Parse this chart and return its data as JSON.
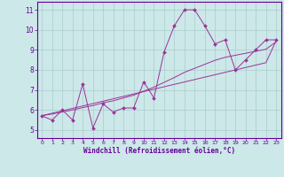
{
  "title": "",
  "xlabel": "Windchill (Refroidissement éolien,°C)",
  "bg_color": "#cce8e8",
  "line_color": "#993399",
  "grid_color": "#aacccc",
  "axis_color": "#660099",
  "spine_color": "#660099",
  "x_data": [
    0,
    1,
    2,
    3,
    4,
    5,
    6,
    7,
    8,
    9,
    10,
    11,
    12,
    13,
    14,
    15,
    16,
    17,
    18,
    19,
    20,
    21,
    22,
    23
  ],
  "y_scatter": [
    5.7,
    5.5,
    6.0,
    5.5,
    7.3,
    5.1,
    6.3,
    5.9,
    6.1,
    6.1,
    7.4,
    6.6,
    8.9,
    10.2,
    11.0,
    11.0,
    10.2,
    9.3,
    9.5,
    8.0,
    8.5,
    9.0,
    9.5,
    9.5
  ],
  "y_trend1": [
    5.72,
    5.84,
    5.96,
    6.08,
    6.2,
    6.32,
    6.44,
    6.56,
    6.68,
    6.8,
    6.92,
    7.04,
    7.16,
    7.28,
    7.4,
    7.52,
    7.64,
    7.76,
    7.88,
    8.0,
    8.12,
    8.24,
    8.36,
    9.45
  ],
  "y_trend2": [
    5.72,
    5.8,
    5.9,
    6.0,
    6.12,
    6.22,
    6.36,
    6.46,
    6.6,
    6.74,
    6.94,
    7.14,
    7.38,
    7.62,
    7.88,
    8.08,
    8.28,
    8.48,
    8.63,
    8.73,
    8.83,
    8.93,
    9.03,
    9.4
  ],
  "ylim": [
    4.6,
    11.4
  ],
  "yticks": [
    5,
    6,
    7,
    8,
    9,
    10,
    11
  ],
  "xlim": [
    -0.5,
    23.5
  ]
}
